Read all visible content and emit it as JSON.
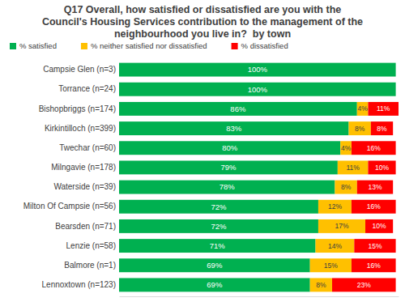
{
  "chart_data": {
    "type": "bar",
    "title": "Q17 Overall, how satisfied or dissatisfied are you with the Council's Housing Services contribution to the management of the neighbourhood you live in?  by town",
    "orientation": "horizontal",
    "stacked": true,
    "data_labels": true,
    "tick_labels": "y",
    "legend": "top",
    "grid": false,
    "xlim": [
      0,
      101
    ],
    "xticks": [],
    "categories": [
      "Campsie Glen (n=3)",
      "Torrance (n=24)",
      "Bishopbriggs (n=174)",
      "Kirkintilloch (n=399)",
      "Twechar (n=60)",
      "Milngavie (n=178)",
      "Waterside (n=39)",
      "Milton Of Campsie (n=56)",
      "Bearsden (n=71)",
      "Lenzie (n=58)",
      "Balmore (n=1)",
      "Lennoxtown (n=123)"
    ],
    "series": [
      {
        "name": "% satisfied",
        "color": "#00b050",
        "values": [
          100,
          100,
          86,
          83,
          80,
          79,
          78,
          72,
          72,
          71,
          69,
          69
        ],
        "value_labels": [
          "100%",
          "100%",
          "86%",
          "83%",
          "80%",
          "79%",
          "78%",
          "72%",
          "72%",
          "71%",
          "69%",
          "69%"
        ]
      },
      {
        "name": "% neither satisfied nor dissatisfied",
        "color": "#ffc000",
        "values": [
          0,
          0,
          4,
          8,
          4,
          11,
          8,
          12,
          17,
          14,
          15,
          8
        ],
        "value_labels": [
          null,
          null,
          "4%",
          "8%",
          "4%",
          "11%",
          "8%",
          "12%",
          "17%",
          "14%",
          "15%",
          "8%"
        ]
      },
      {
        "name": "% dissatisfied",
        "color": "#ff0000",
        "values": [
          0,
          0,
          11,
          8,
          16,
          10,
          13,
          16,
          10,
          15,
          16,
          23
        ],
        "value_labels": [
          null,
          null,
          "11%",
          "8%",
          "16%",
          "10%",
          "13%",
          "16%",
          "10%",
          "15%",
          "16%",
          "23%"
        ]
      }
    ]
  }
}
